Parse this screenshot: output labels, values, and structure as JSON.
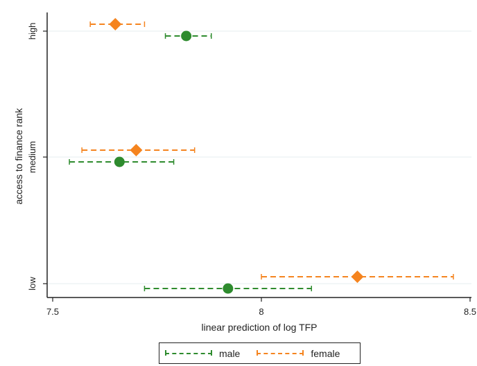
{
  "chart_data": {
    "type": "scatter",
    "title": "",
    "xlabel": "linear prediction of log TFP",
    "ylabel": "access to finance rank",
    "xlim": [
      7.5,
      8.5
    ],
    "x_ticks": [
      "7.5",
      "8",
      "8.5"
    ],
    "categories": [
      "high",
      "medium",
      "low"
    ],
    "grid": "horizontal",
    "legend_placement": "bottom",
    "series": [
      {
        "name": "male",
        "color": "#2e8b2e",
        "marker": "circle",
        "points": [
          {
            "category": "high",
            "estimate": 7.82,
            "ci": [
              7.77,
              7.88
            ]
          },
          {
            "category": "medium",
            "estimate": 7.66,
            "ci": [
              7.54,
              7.79
            ]
          },
          {
            "category": "low",
            "estimate": 7.92,
            "ci": [
              7.72,
              8.12
            ]
          }
        ]
      },
      {
        "name": "female",
        "color": "#f5841f",
        "marker": "diamond",
        "points": [
          {
            "category": "high",
            "estimate": 7.65,
            "ci": [
              7.59,
              7.72
            ]
          },
          {
            "category": "medium",
            "estimate": 7.7,
            "ci": [
              7.57,
              7.84
            ]
          },
          {
            "category": "low",
            "estimate": 8.23,
            "ci": [
              8.0,
              8.46
            ]
          }
        ]
      }
    ]
  }
}
